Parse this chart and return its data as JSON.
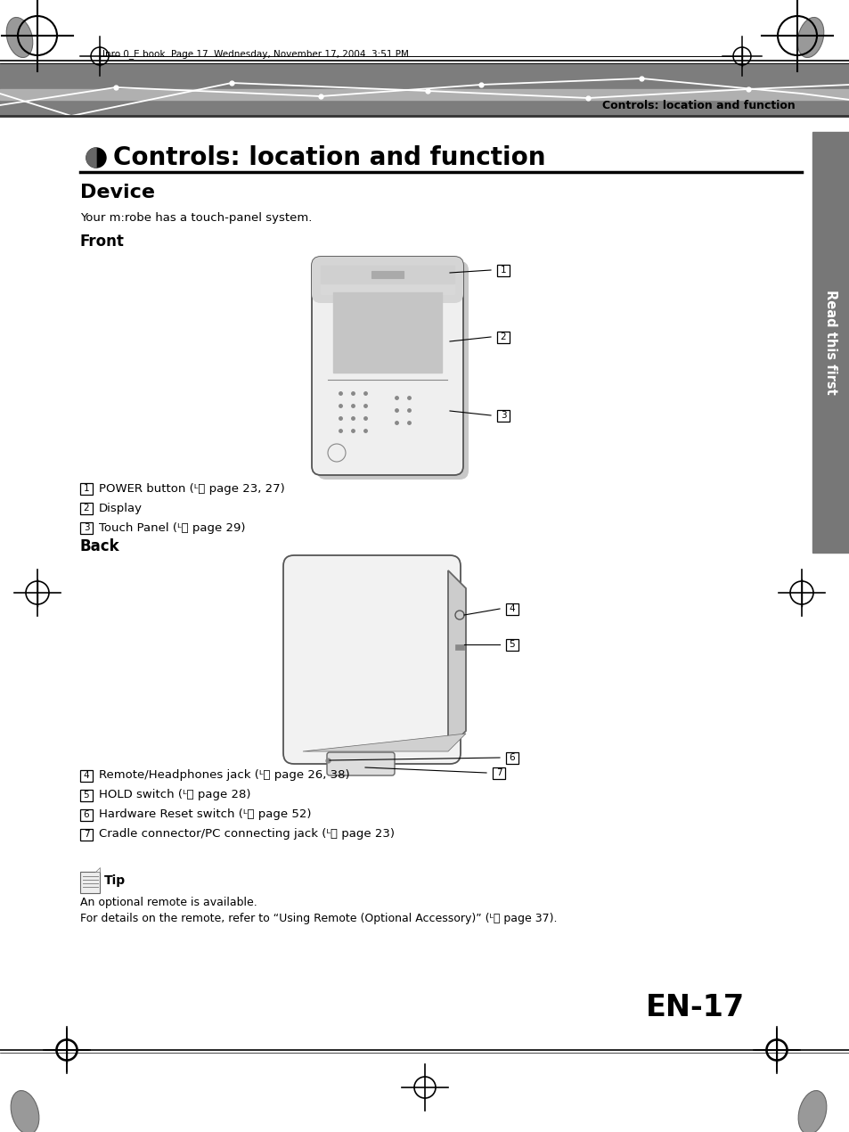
{
  "page_title": "Controls: location and function",
  "section_device": "Device",
  "section_subtitle": "Your m:robe has a touch-panel system.",
  "front_label": "Front",
  "back_label": "Back",
  "header_text": "Inro 0_E.book  Page 17  Wednesday, November 17, 2004  3:51 PM",
  "header_right": "Controls: location and function",
  "page_number": "EN-17",
  "sidebar_text": "Read this first",
  "front_items": [
    [
      "1",
      "POWER button (ᴸⓡ page 23, 27)"
    ],
    [
      "2",
      "Display"
    ],
    [
      "3",
      "Touch Panel (ᴸⓡ page 29)"
    ]
  ],
  "back_items": [
    [
      "4",
      "Remote/Headphones jack (ᴸⓡ page 26, 38)"
    ],
    [
      "5",
      "HOLD switch (ᴸⓡ page 28)"
    ],
    [
      "6",
      "Hardware Reset switch (ᴸⓡ page 52)"
    ],
    [
      "7",
      "Cradle connector/PC connecting jack (ᴸⓡ page 23)"
    ]
  ],
  "tip_title": "Tip",
  "tip_line1": "An optional remote is available.",
  "tip_line2": "For details on the remote, refer to “Using Remote (Optional Accessory)” (ᴸⓡ page 37).",
  "bg_color": "#ffffff",
  "header_dark": "#888888",
  "header_mid": "#aaaaaa",
  "tab_color": "#777777"
}
